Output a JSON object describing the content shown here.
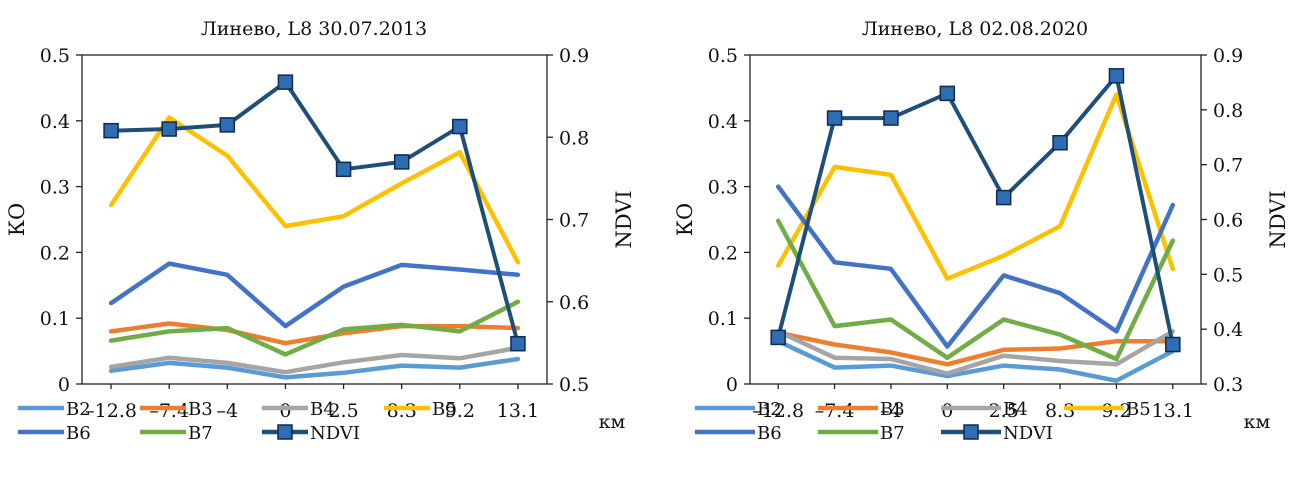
{
  "chart_data": [
    {
      "type": "line",
      "title": "Линево, L8 30.07.2013",
      "xlabel": "",
      "x_unit": "км",
      "ylabel": "КО",
      "y2label": "NDVI",
      "categories": [
        "–12.8",
        "–7.4",
        "–4",
        "0",
        "2.5",
        "8.3",
        "9.2",
        "13.1"
      ],
      "ylim": [
        0,
        0.5
      ],
      "yticks": [
        "0",
        "0.1",
        "0.2",
        "0.3",
        "0.4",
        "0.5"
      ],
      "y2lim": [
        0.5,
        0.9
      ],
      "y2ticks": [
        "0.5",
        "0.6",
        "0.7",
        "0.8",
        "0.9"
      ],
      "grid": false,
      "legend_position": "bottom",
      "series": [
        {
          "name": "B2",
          "axis": "left",
          "color": "#5B9BD5",
          "values": [
            0.02,
            0.032,
            0.025,
            0.01,
            0.017,
            0.028,
            0.025,
            0.038
          ]
        },
        {
          "name": "B3",
          "axis": "left",
          "color": "#ED7D31",
          "values": [
            0.08,
            0.092,
            0.082,
            0.062,
            0.077,
            0.088,
            0.088,
            0.085
          ]
        },
        {
          "name": "B4",
          "axis": "left",
          "color": "#A5A5A5",
          "values": [
            0.026,
            0.04,
            0.032,
            0.018,
            0.033,
            0.044,
            0.039,
            0.055
          ]
        },
        {
          "name": "B5",
          "axis": "left",
          "color": "#FFC000",
          "values": [
            0.272,
            0.405,
            0.347,
            0.24,
            0.255,
            0.305,
            0.352,
            0.185
          ]
        },
        {
          "name": "B6",
          "axis": "left",
          "color": "#4472C4",
          "values": [
            0.123,
            0.183,
            0.166,
            0.088,
            0.148,
            0.181,
            0.174,
            0.166
          ]
        },
        {
          "name": "B7",
          "axis": "left",
          "color": "#70AD47",
          "values": [
            0.066,
            0.08,
            0.085,
            0.045,
            0.083,
            0.09,
            0.08,
            0.125
          ]
        },
        {
          "name": "NDVI",
          "axis": "right",
          "color": "#1F4E79",
          "marker": "square",
          "values": [
            0.808,
            0.81,
            0.815,
            0.867,
            0.761,
            0.77,
            0.813,
            0.549
          ]
        }
      ]
    },
    {
      "type": "line",
      "title": "Линево, L8 02.08.2020",
      "xlabel": "",
      "x_unit": "км",
      "ylabel": "КО",
      "y2label": "NDVI",
      "categories": [
        "–12.8",
        "–7.4",
        "–4",
        "0",
        "2.5",
        "8.3",
        "9.2",
        "13.1"
      ],
      "ylim": [
        0,
        0.5
      ],
      "yticks": [
        "0",
        "0.1",
        "0.2",
        "0.3",
        "0.4",
        "0.5"
      ],
      "y2lim": [
        0.3,
        0.9
      ],
      "y2ticks": [
        "0.3",
        "0.4",
        "0.5",
        "0.6",
        "0.7",
        "0.8",
        "0.9"
      ],
      "grid": false,
      "legend_position": "bottom",
      "series": [
        {
          "name": "B2",
          "axis": "left",
          "color": "#5B9BD5",
          "values": [
            0.065,
            0.025,
            0.028,
            0.012,
            0.028,
            0.022,
            0.005,
            0.05
          ]
        },
        {
          "name": "B3",
          "axis": "left",
          "color": "#ED7D31",
          "values": [
            0.078,
            0.06,
            0.048,
            0.03,
            0.052,
            0.054,
            0.065,
            0.065
          ]
        },
        {
          "name": "B4",
          "axis": "left",
          "color": "#A5A5A5",
          "values": [
            0.08,
            0.04,
            0.038,
            0.016,
            0.043,
            0.035,
            0.03,
            0.08
          ]
        },
        {
          "name": "B5",
          "axis": "left",
          "color": "#FFC000",
          "values": [
            0.18,
            0.33,
            0.318,
            0.16,
            0.195,
            0.24,
            0.44,
            0.175
          ]
        },
        {
          "name": "B6",
          "axis": "left",
          "color": "#4472C4",
          "values": [
            0.3,
            0.185,
            0.175,
            0.057,
            0.165,
            0.138,
            0.08,
            0.272
          ]
        },
        {
          "name": "B7",
          "axis": "left",
          "color": "#70AD47",
          "values": [
            0.248,
            0.088,
            0.098,
            0.04,
            0.098,
            0.075,
            0.038,
            0.218
          ]
        },
        {
          "name": "NDVI",
          "axis": "right",
          "color": "#1F4E79",
          "marker": "square",
          "values": [
            0.385,
            0.785,
            0.785,
            0.83,
            0.64,
            0.74,
            0.862,
            0.372
          ]
        }
      ]
    }
  ]
}
